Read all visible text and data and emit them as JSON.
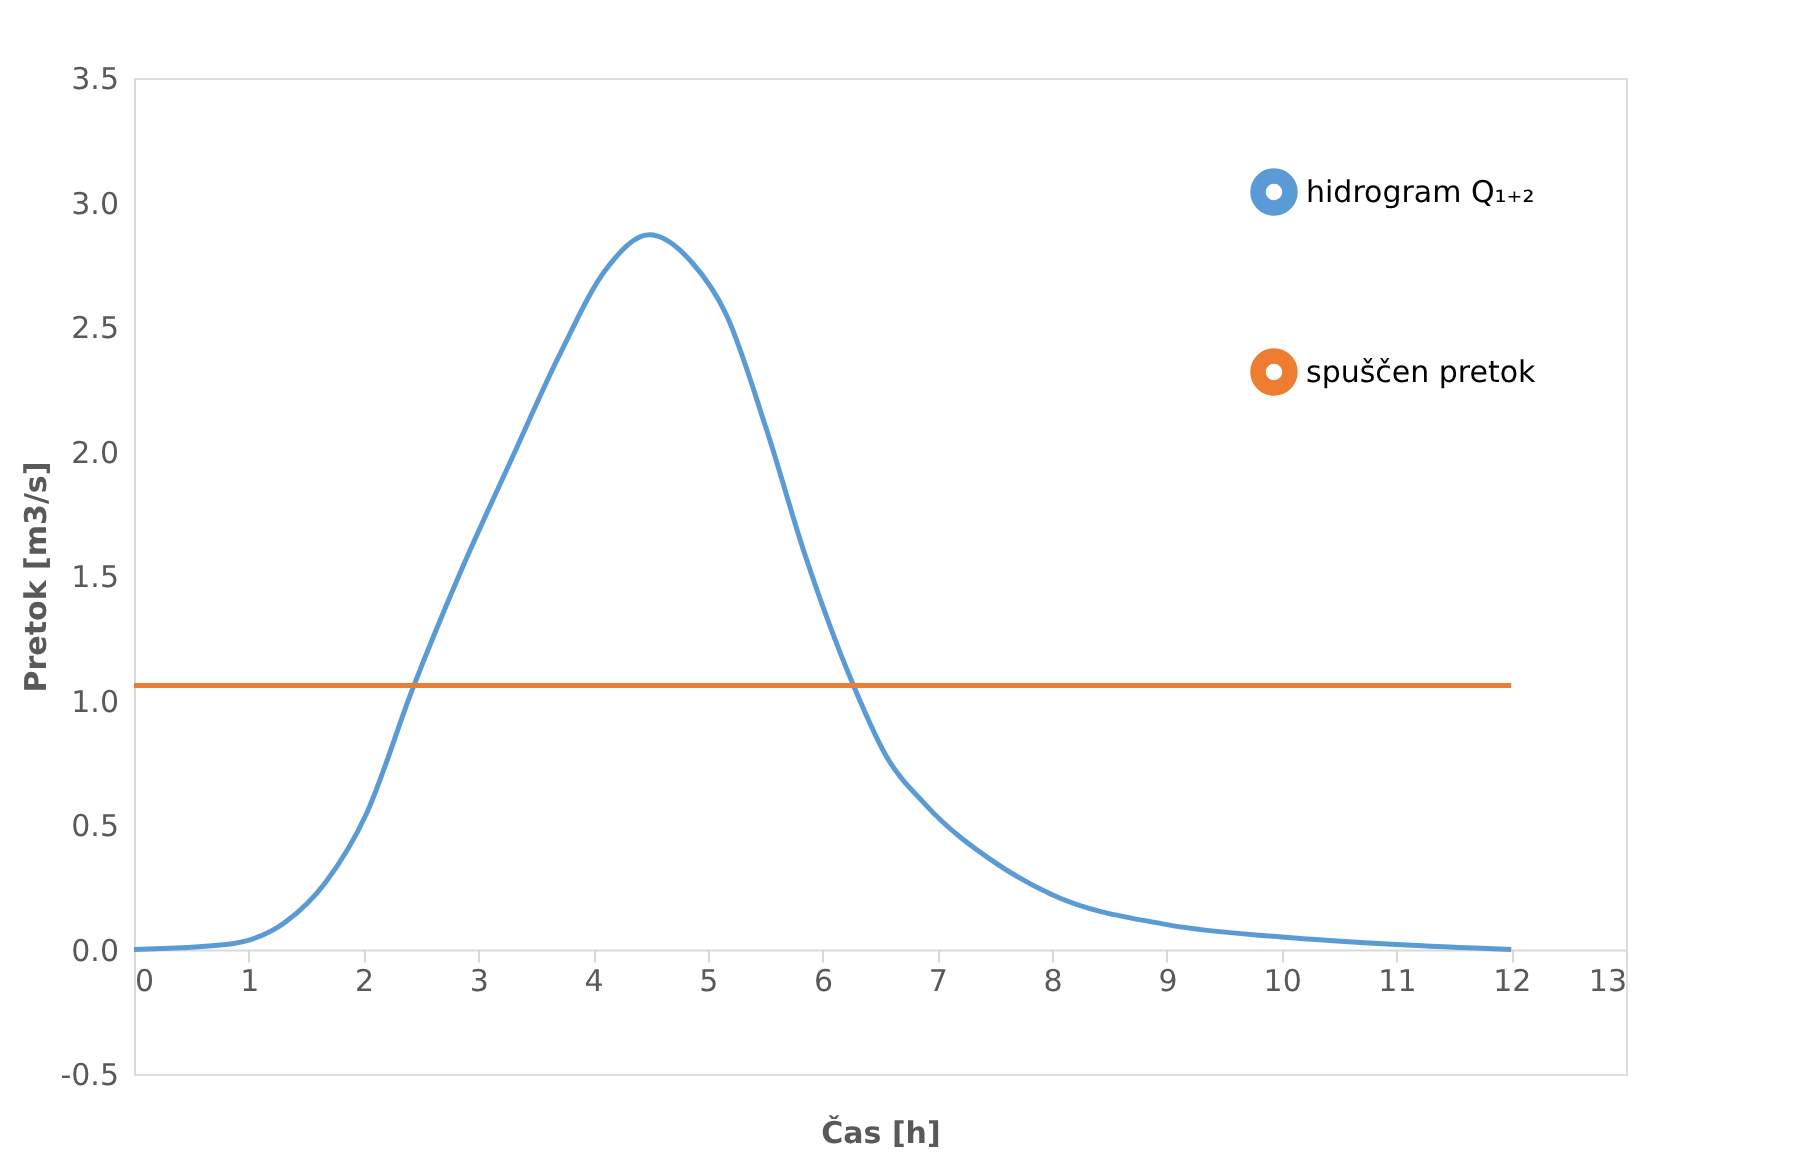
{
  "chart_data": {
    "type": "line",
    "xlabel": "Čas [h]",
    "ylabel": "Pretok [m3/s]",
    "xlim": [
      0,
      13
    ],
    "xticks": [
      0,
      1,
      2,
      3,
      4,
      5,
      6,
      7,
      8,
      9,
      10,
      11,
      12,
      13
    ],
    "ylim": [
      -0.5,
      3.5
    ],
    "yticks": [
      -0.5,
      {
        "value": 0,
        "label": "0.0"
      },
      0.5,
      {
        "value": 1,
        "label": "1.0"
      },
      1.5,
      {
        "value": 2,
        "label": "2.0"
      },
      2.5,
      {
        "value": 3,
        "label": "3.0"
      },
      3.5
    ],
    "grid": false,
    "legend": "top right",
    "marker": "none",
    "line_style": "solid",
    "series": [
      {
        "name": "hidrogram Q₁₊₂",
        "color": "#5b9bd5",
        "x": [
          0,
          0.8,
          1.32,
          1.67,
          2.02,
          2.43,
          2.83,
          3.3,
          3.71,
          4.11,
          4.49,
          4.86,
          5.16,
          5.51,
          5.85,
          6.26,
          6.55,
          6.9,
          7.5,
          8,
          9,
          10,
          11,
          12
        ],
        "values": [
          0,
          0.02,
          0.11,
          0.27,
          0.54,
          1.05,
          1.5,
          1.98,
          2.39,
          2.73,
          2.87,
          2.76,
          2.55,
          2.09,
          1.58,
          1.07,
          0.78,
          0.58,
          0.35,
          0.22,
          0.1,
          0.05,
          0.02,
          0
        ]
      },
      {
        "name": "spuščen pretok",
        "color": "#ed7d31",
        "x": [
          0,
          12
        ],
        "values": [
          1.06,
          1.06
        ]
      }
    ]
  }
}
